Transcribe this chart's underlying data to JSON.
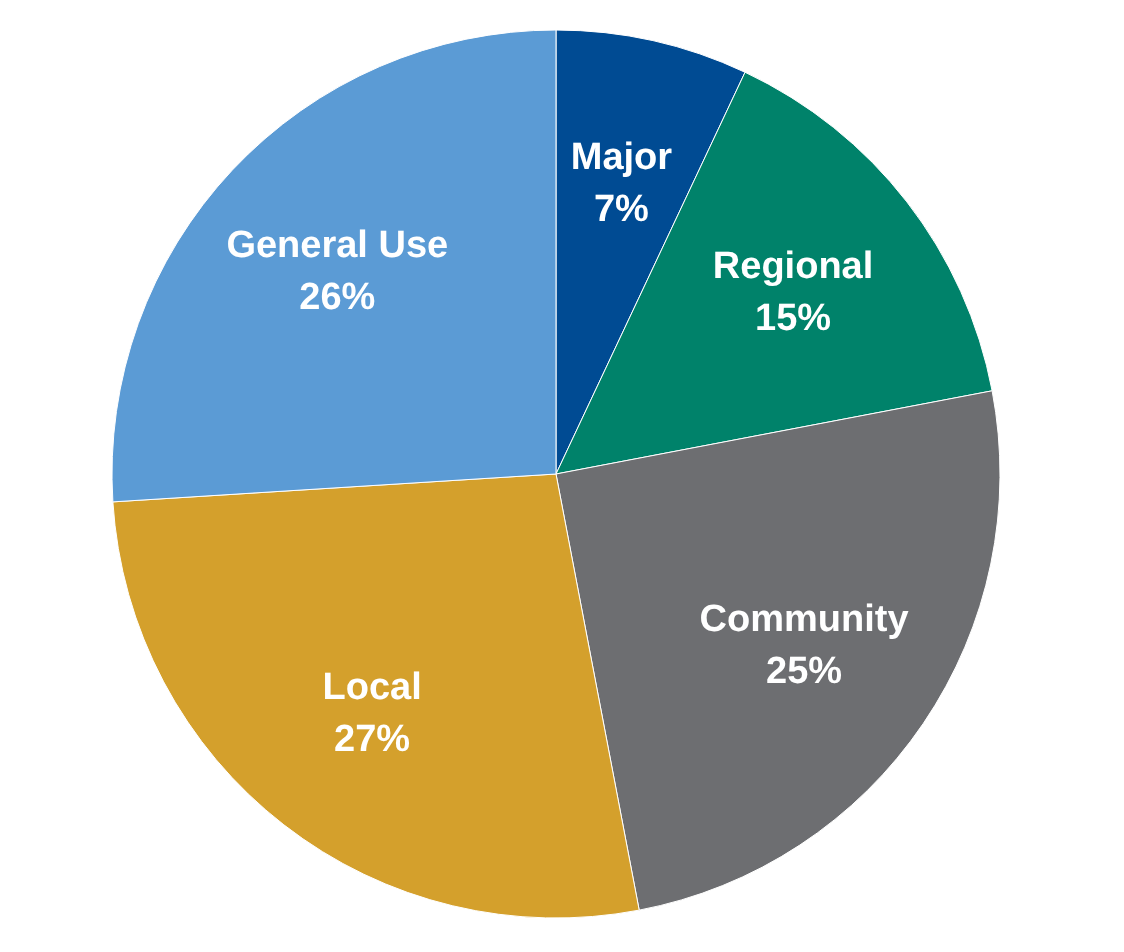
{
  "chart_data": {
    "type": "pie",
    "categories": [
      "Major",
      "Regional",
      "Community",
      "Local",
      "General Use"
    ],
    "values": [
      7,
      15,
      25,
      27,
      26
    ],
    "colors": [
      "#004b93",
      "#00826a",
      "#6d6e71",
      "#d4a02c",
      "#5b9bd5"
    ],
    "value_labels": [
      "7%",
      "15%",
      "25%",
      "27%",
      "26%"
    ]
  }
}
